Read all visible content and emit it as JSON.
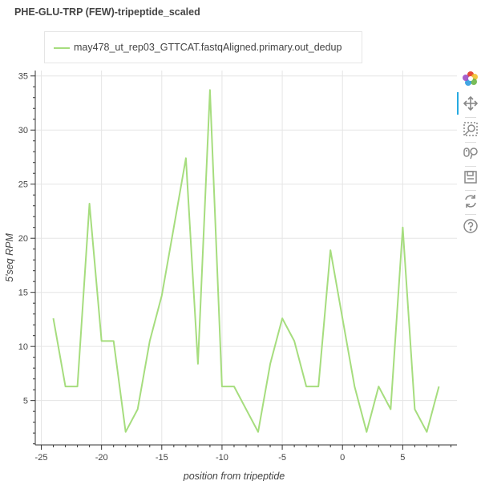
{
  "chart_data": {
    "type": "line",
    "title": "PHE-GLU-TRP (FEW)-tripeptide_scaled",
    "xlabel": "position from tripeptide",
    "ylabel": "5'seq RPM",
    "xlim": [
      -25.5,
      9.5
    ],
    "ylim": [
      0.9,
      35.5
    ],
    "xticks": [
      -25,
      -20,
      -15,
      -10,
      -5,
      0,
      5
    ],
    "yticks": [
      5,
      10,
      15,
      20,
      25,
      30,
      35
    ],
    "grid": true,
    "legend_position": "top-left",
    "series": [
      {
        "name": "may478_ut_rep03_GTTCAT.fastqAligned.primary.out_dedup",
        "color": "#a6dd7e",
        "x": [
          -24,
          -23,
          -22,
          -21,
          -20,
          -19,
          -18,
          -17,
          -16,
          -15,
          -14,
          -13,
          -12,
          -11,
          -10,
          -9,
          -8,
          -7,
          -6,
          -5,
          -4,
          -3,
          -2,
          -1,
          0,
          1,
          2,
          3,
          4,
          5,
          6,
          7,
          8
        ],
        "y": [
          12.6,
          6.3,
          6.3,
          23.2,
          10.5,
          10.5,
          2.1,
          4.2,
          10.5,
          14.7,
          21.0,
          27.4,
          8.4,
          33.7,
          6.3,
          6.3,
          4.2,
          2.1,
          8.4,
          12.6,
          10.5,
          6.3,
          6.3,
          18.9,
          12.6,
          6.3,
          2.1,
          6.3,
          4.2,
          21.0,
          4.2,
          2.1,
          6.3
        ]
      }
    ]
  },
  "toolbar": {
    "icons": [
      "bokeh-logo-icon",
      "pan-icon",
      "box-zoom-icon",
      "wheel-zoom-icon",
      "save-icon",
      "reset-icon",
      "help-icon"
    ],
    "active_color": "#26aae1"
  }
}
